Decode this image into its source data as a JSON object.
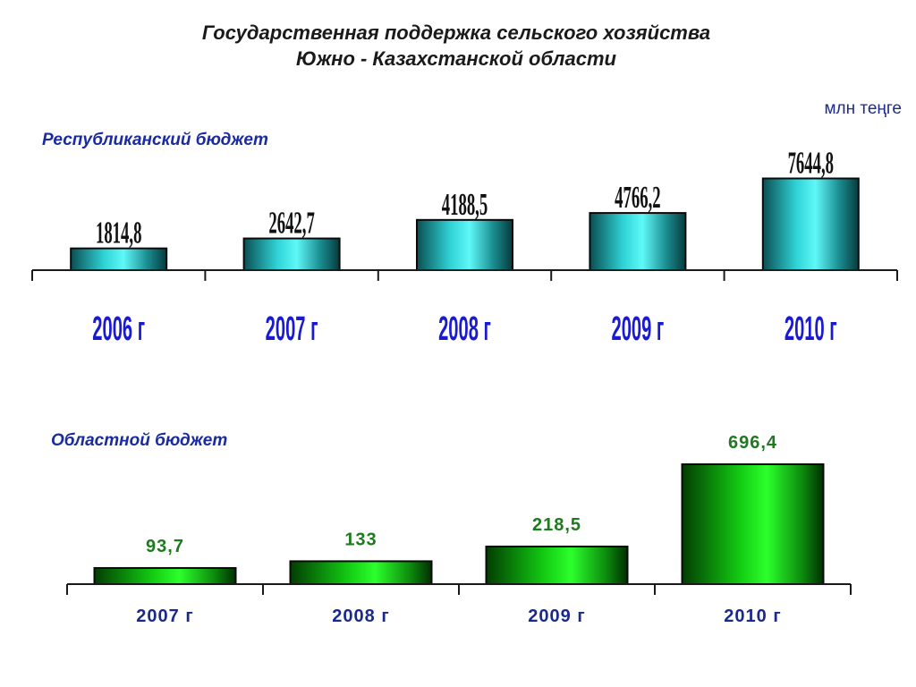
{
  "header": {
    "title_line1": "Государственная поддержка сельского хозяйства",
    "title_line2": "Южно - Казахстанской области",
    "unit": "млн теңге"
  },
  "chart_data": [
    {
      "type": "bar",
      "title": "Республиканский бюджет",
      "categories": [
        "2006 г",
        "2007 г",
        "2008 г",
        "2009 г",
        "2010 г"
      ],
      "values": [
        1814.8,
        2642.7,
        4188.5,
        4766.2,
        7644.8
      ],
      "value_labels": [
        "1814,8",
        "2642,7",
        "4188,5",
        "4766,2",
        "7644,8"
      ],
      "ylim": [
        0,
        8000
      ],
      "colors": {
        "bar_light": "#3ff0f0",
        "bar_dark": "#0b5a5a",
        "value_text": "#111111",
        "category_text": "#1a1ad0"
      }
    },
    {
      "type": "bar",
      "title": "Областной бюджет",
      "categories": [
        "2007 г",
        "2008 г",
        "2009 г",
        "2010 г"
      ],
      "values": [
        93.7,
        133,
        218.5,
        696.4
      ],
      "value_labels": [
        "93,7",
        "133",
        "218,5",
        "696,4"
      ],
      "ylim": [
        0,
        720
      ],
      "colors": {
        "bar_light": "#22ff22",
        "bar_dark": "#034f03",
        "value_text": "#1e7a1e",
        "category_text": "#1a2a8a"
      }
    }
  ]
}
